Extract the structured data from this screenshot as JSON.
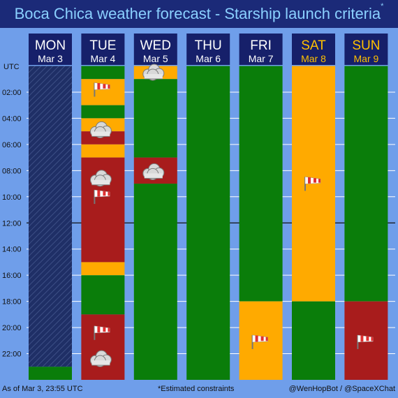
{
  "title": "Boca Chica weather forecast - Starship launch criteria",
  "title_marker": "*",
  "utc_label": "UTC",
  "colors": {
    "go": "#0a7d0a",
    "marginal": "#ffaa00",
    "nogo": "#a81c1c",
    "past": "#1f2f66",
    "header_bg": "#16206a",
    "header_text": "#ffffff",
    "weekend_text": "#ffc000",
    "title_text": "#8ad0ff",
    "background": "#6f9eea"
  },
  "footer": {
    "left": "As of Mar 3, 23:55 UTC",
    "center": "*Estimated constraints",
    "right": "@WenHopBot / @SpaceXChat"
  },
  "chart_data": {
    "type": "timeline",
    "y_unit": "hour UTC",
    "ylim": [
      0,
      24
    ],
    "tick_labels": [
      "02:00",
      "04:00",
      "06:00",
      "08:00",
      "10:00",
      "12:00",
      "14:00",
      "16:00",
      "18:00",
      "20:00",
      "22:00"
    ],
    "tick_hours": [
      2,
      4,
      6,
      8,
      10,
      12,
      14,
      16,
      18,
      20,
      22
    ],
    "highlight_hour": 12,
    "days": [
      {
        "day": "MON",
        "date": "Mar 3",
        "weekend": false,
        "segments": [
          {
            "start": 0,
            "end": 23,
            "status": "past"
          },
          {
            "start": 23,
            "end": 24,
            "status": "go"
          }
        ],
        "icons": []
      },
      {
        "day": "TUE",
        "date": "Mar 4",
        "weekend": false,
        "segments": [
          {
            "start": 0,
            "end": 1,
            "status": "go"
          },
          {
            "start": 1,
            "end": 3,
            "status": "marginal"
          },
          {
            "start": 3,
            "end": 4,
            "status": "go"
          },
          {
            "start": 4,
            "end": 5,
            "status": "marginal"
          },
          {
            "start": 5,
            "end": 6,
            "status": "nogo"
          },
          {
            "start": 6,
            "end": 7,
            "status": "marginal"
          },
          {
            "start": 7,
            "end": 15,
            "status": "nogo"
          },
          {
            "start": 15,
            "end": 16,
            "status": "marginal"
          },
          {
            "start": 16,
            "end": 19,
            "status": "go"
          },
          {
            "start": 19,
            "end": 24,
            "status": "nogo"
          }
        ],
        "icons": [
          {
            "type": "wind-icon",
            "hour": 1.6
          },
          {
            "type": "cloud-icon",
            "hour": 4.8
          },
          {
            "type": "cloud-icon",
            "hour": 8.5
          },
          {
            "type": "wind-icon",
            "hour": 9.8
          },
          {
            "type": "wind-icon",
            "hour": 20.2
          },
          {
            "type": "cloud-icon",
            "hour": 22.3
          }
        ]
      },
      {
        "day": "WED",
        "date": "Mar 5",
        "weekend": false,
        "segments": [
          {
            "start": 0,
            "end": 1,
            "status": "marginal"
          },
          {
            "start": 1,
            "end": 7,
            "status": "go"
          },
          {
            "start": 7,
            "end": 9,
            "status": "nogo"
          },
          {
            "start": 9,
            "end": 24,
            "status": "go"
          }
        ],
        "icons": [
          {
            "type": "cloud-icon",
            "hour": 0.4
          },
          {
            "type": "cloud-icon",
            "hour": 8.0
          }
        ]
      },
      {
        "day": "THU",
        "date": "Mar 6",
        "weekend": false,
        "segments": [
          {
            "start": 0,
            "end": 24,
            "status": "go"
          }
        ],
        "icons": []
      },
      {
        "day": "FRI",
        "date": "Mar 7",
        "weekend": false,
        "segments": [
          {
            "start": 0,
            "end": 18,
            "status": "go"
          },
          {
            "start": 18,
            "end": 24,
            "status": "marginal"
          }
        ],
        "icons": [
          {
            "type": "wind-icon",
            "hour": 20.9
          }
        ]
      },
      {
        "day": "SAT",
        "date": "Mar 8",
        "weekend": true,
        "segments": [
          {
            "start": 0,
            "end": 18,
            "status": "marginal"
          },
          {
            "start": 18,
            "end": 24,
            "status": "go"
          }
        ],
        "icons": [
          {
            "type": "wind-icon",
            "hour": 8.8
          }
        ]
      },
      {
        "day": "SUN",
        "date": "Mar 9",
        "weekend": true,
        "segments": [
          {
            "start": 0,
            "end": 18,
            "status": "go"
          },
          {
            "start": 18,
            "end": 24,
            "status": "nogo"
          }
        ],
        "icons": [
          {
            "type": "wind-icon",
            "hour": 20.9
          }
        ]
      }
    ]
  }
}
